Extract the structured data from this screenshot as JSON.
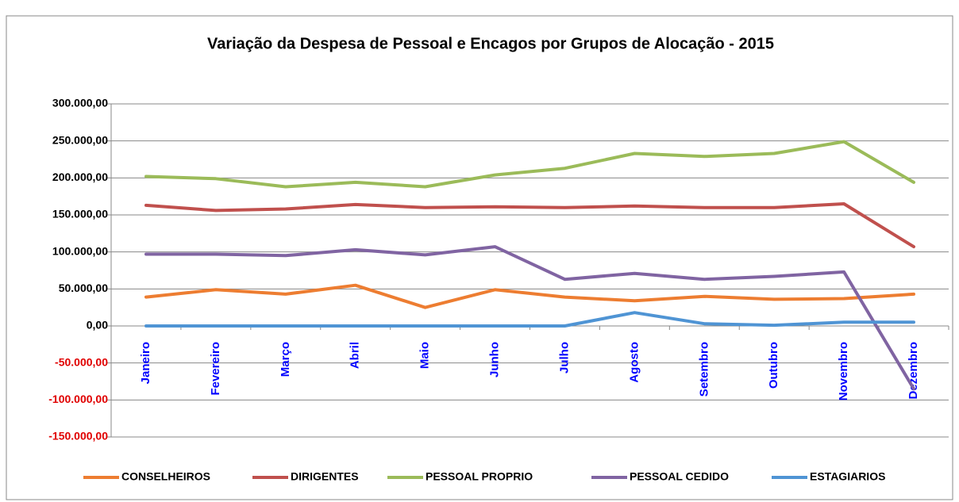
{
  "chart_data": {
    "type": "line",
    "title": "Variação da Despesa de Pessoal e Encagos por Grupos de Alocação - 2015",
    "categories": [
      "Janeiro",
      "Fevereiro",
      "Março",
      "Abril",
      "Maio",
      "Junho",
      "Julho",
      "Agosto",
      "Setembro",
      "Outubro",
      "Novembro",
      "Dezembro"
    ],
    "series": [
      {
        "name": "CONSELHEIROS",
        "color": "#ed7d31",
        "values": [
          39000,
          49000,
          43000,
          55000,
          25000,
          49000,
          39000,
          34000,
          40000,
          36000,
          37000,
          43000
        ]
      },
      {
        "name": "DIRIGENTES",
        "color": "#c0504d",
        "values": [
          163000,
          156000,
          158000,
          164000,
          160000,
          161000,
          160000,
          162000,
          160000,
          160000,
          165000,
          107000
        ]
      },
      {
        "name": "PESSOAL PROPRIO",
        "color": "#9bbb59",
        "values": [
          202000,
          199000,
          188000,
          194000,
          188000,
          204000,
          213000,
          233000,
          229000,
          233000,
          249000,
          194000
        ]
      },
      {
        "name": "PESSOAL CEDIDO",
        "color": "#8064a2",
        "values": [
          97000,
          97000,
          95000,
          103000,
          96000,
          107000,
          63000,
          71000,
          63000,
          67000,
          73000,
          -85000
        ]
      },
      {
        "name": "ESTAGIARIOS",
        "color": "#4f94d4",
        "values": [
          0,
          0,
          0,
          0,
          0,
          0,
          0,
          18000,
          3000,
          1000,
          5000,
          5000
        ]
      }
    ],
    "ylim": [
      -150000,
      300000
    ],
    "yticks": [
      {
        "value": -150000,
        "label": "-150.000,00"
      },
      {
        "value": -100000,
        "label": "-100.000,00"
      },
      {
        "value": -50000,
        "label": "-50.000,00"
      },
      {
        "value": 0,
        "label": "0,00"
      },
      {
        "value": 50000,
        "label": "50.000,00"
      },
      {
        "value": 100000,
        "label": "100.000,00"
      },
      {
        "value": 150000,
        "label": "150.000,00"
      },
      {
        "value": 200000,
        "label": "200.000,00"
      },
      {
        "value": 250000,
        "label": "250.000,00"
      },
      {
        "value": 300000,
        "label": "300.000,00"
      }
    ],
    "grid": true,
    "negative_tick_color": "#e00000",
    "category_label_color": "#0000ff",
    "legend": "bottom"
  }
}
